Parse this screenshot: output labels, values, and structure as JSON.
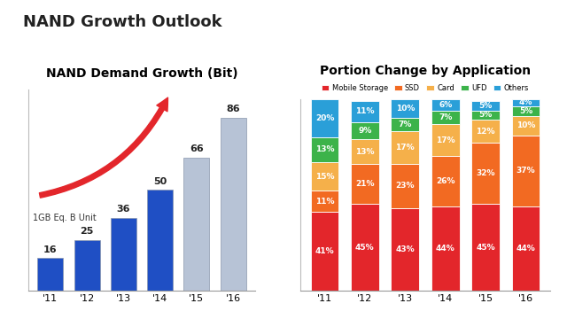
{
  "title": "NAND Growth Outlook",
  "chart_data": [
    {
      "type": "bar",
      "title": "NAND Demand Growth (Bit)",
      "annotation": "1GB Eq. B Unit",
      "categories": [
        "'11",
        "'12",
        "'13",
        "'14",
        "'15",
        "'16"
      ],
      "values": [
        16,
        25,
        36,
        50,
        66,
        86
      ],
      "colors": [
        "#1f4fc4",
        "#1f4fc4",
        "#1f4fc4",
        "#1f4fc4",
        "#b7c3d6",
        "#b7c3d6"
      ],
      "data_labels": true,
      "tick_labels": "x",
      "ylim": [
        0,
        100
      ]
    },
    {
      "type": "bar",
      "title": "Portion Change by Application",
      "stacked": true,
      "data_labels": true,
      "tick_labels": "x",
      "legend": "top",
      "ylim": [
        0,
        100
      ],
      "categories": [
        "'11",
        "'12",
        "'13",
        "'14",
        "'15",
        "'16"
      ],
      "series": [
        {
          "name": "Mobile Storage",
          "color": "#e3262b",
          "values": [
            41,
            45,
            43,
            44,
            45,
            44
          ],
          "value_labels": [
            "41%",
            "45%",
            "43%",
            "44%",
            "45%",
            "44%"
          ]
        },
        {
          "name": "SSD",
          "color": "#f26a22",
          "values": [
            11,
            21,
            23,
            26,
            32,
            37
          ],
          "value_labels": [
            "11%",
            "21%",
            "23%",
            "26%",
            "32%",
            "37%"
          ]
        },
        {
          "name": "Card",
          "color": "#f5b04a",
          "values": [
            15,
            13,
            17,
            17,
            12,
            10
          ],
          "value_labels": [
            "15%",
            "13%",
            "17%",
            "17%",
            "12%",
            "10%"
          ]
        },
        {
          "name": "UFD",
          "color": "#3cb34a",
          "values": [
            13,
            9,
            7,
            7,
            5,
            5
          ],
          "value_labels": [
            "13%",
            "9%",
            "7%",
            "7%",
            "5%",
            "5%"
          ]
        },
        {
          "name": "Others",
          "color": "#2a9fd8",
          "values": [
            20,
            11,
            10,
            6,
            5,
            4
          ],
          "value_labels": [
            "20%",
            "11%",
            "10%",
            "6%",
            "5%",
            "4%"
          ]
        }
      ]
    }
  ]
}
